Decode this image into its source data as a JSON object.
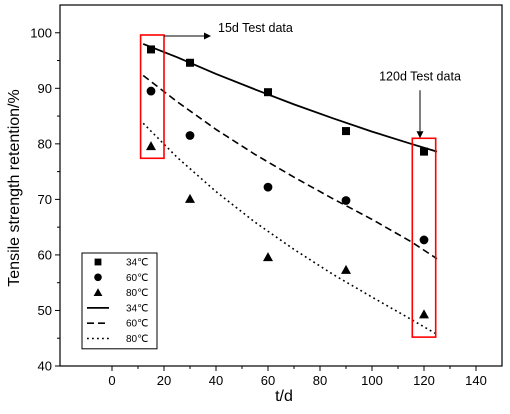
{
  "chart_data": {
    "type": "scatter",
    "xlabel": "t/d",
    "ylabel": "Tensile strength retention/%",
    "xlim": [
      -20,
      150
    ],
    "ylim": [
      40,
      105
    ],
    "x_ticks": [
      0,
      20,
      40,
      60,
      80,
      100,
      120,
      140
    ],
    "y_ticks": [
      40,
      50,
      60,
      70,
      80,
      90,
      100
    ],
    "grid": false,
    "legend_position": "bottom-left",
    "series": [
      {
        "name": "34℃",
        "kind": "points",
        "marker": "square",
        "x": [
          15,
          30,
          60,
          90,
          120
        ],
        "y": [
          97,
          94.6,
          89.3,
          82.3,
          78.6
        ]
      },
      {
        "name": "60℃",
        "kind": "points",
        "marker": "circle",
        "x": [
          15,
          30,
          60,
          90,
          120
        ],
        "y": [
          89.5,
          81.5,
          72.2,
          69.8,
          62.7
        ]
      },
      {
        "name": "80℃",
        "kind": "points",
        "marker": "triangle",
        "x": [
          15,
          30,
          60,
          90,
          120
        ],
        "y": [
          79.6,
          70.1,
          59.6,
          57.3,
          49.3
        ]
      },
      {
        "name": "34℃",
        "kind": "fit",
        "line": "solid",
        "x": [
          12,
          25,
          40,
          55,
          70,
          85,
          100,
          115,
          125
        ],
        "y": [
          98,
          95.6,
          92.6,
          89.8,
          87.1,
          84.6,
          82.2,
          80,
          78.6
        ]
      },
      {
        "name": "60℃",
        "kind": "fit",
        "line": "dashed",
        "x": [
          12,
          25,
          40,
          55,
          70,
          85,
          100,
          115,
          125
        ],
        "y": [
          92.3,
          87.6,
          82.6,
          78.1,
          74,
          70.1,
          66.4,
          62.4,
          59.3
        ]
      },
      {
        "name": "80℃",
        "kind": "fit",
        "line": "dotted",
        "x": [
          12,
          25,
          40,
          55,
          70,
          85,
          100,
          115,
          125
        ],
        "y": [
          83.7,
          77.6,
          71.4,
          65.9,
          61,
          56.5,
          52.4,
          48.4,
          45.7
        ]
      }
    ],
    "annotations": [
      {
        "text": "15d Test data",
        "target_x": 15
      },
      {
        "text": "120d Test data",
        "target_x": 120
      }
    ],
    "highlight_boxes": [
      {
        "x": [
          11,
          20
        ],
        "y": [
          77.4,
          99.6
        ]
      },
      {
        "x": [
          115.5,
          124.5
        ],
        "y": [
          45.2,
          81
        ]
      }
    ],
    "colors": {
      "axis": "#000000",
      "marker": "#000000",
      "highlight": "#ff0000"
    }
  }
}
